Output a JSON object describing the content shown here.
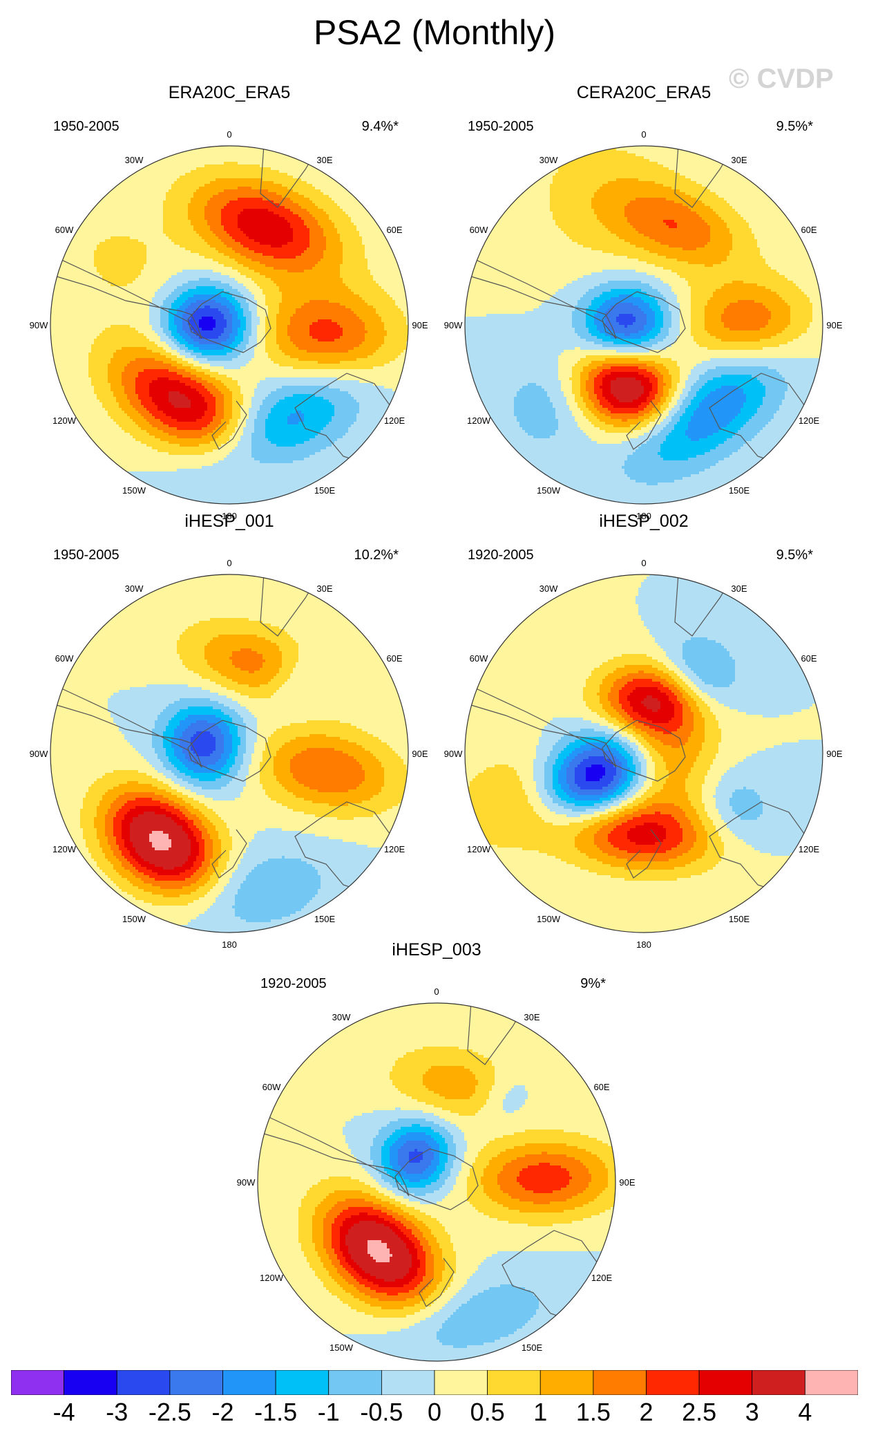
{
  "title": "PSA2 (Monthly)",
  "watermark": "© CVDP",
  "lon_labels": [
    "0",
    "30E",
    "60E",
    "90E",
    "120E",
    "150E",
    "180",
    "150W",
    "120W",
    "90W",
    "60W",
    "30W"
  ],
  "colors": [
    "#8f2ff0",
    "#1800f2",
    "#2a4af0",
    "#3a78ee",
    "#2196f8",
    "#00c0f8",
    "#72c8f2",
    "#b2dff3",
    "#fff59c",
    "#ffd930",
    "#ffae00",
    "#ff7c00",
    "#ff2800",
    "#e40000",
    "#cf1f1f",
    "#ffb4b4"
  ],
  "colorbar_labels": [
    "-4",
    "-3",
    "-2.5",
    "-2",
    "-1.5",
    "-1",
    "-0.5",
    "0",
    "0.5",
    "1",
    "1.5",
    "2",
    "2.5",
    "3",
    "4"
  ],
  "panels": [
    {
      "name": "ERA20C_ERA5",
      "period": "1950-2005",
      "pct": "9.4%*",
      "features": [
        {
          "type": "pos",
          "lon": 20,
          "r": 0.58,
          "amp": 2.9,
          "sx": 0.3,
          "sy": 0.17
        },
        {
          "type": "pos",
          "lon": 270,
          "r": 0.12,
          "amp": -3.4,
          "sx": 0.15,
          "sy": 0.17
        },
        {
          "type": "pos",
          "lon": 212,
          "r": 0.5,
          "amp": 3.2,
          "sx": 0.3,
          "sy": 0.17
        },
        {
          "type": "pos",
          "lon": 96,
          "r": 0.55,
          "amp": 2.2,
          "sx": 0.18,
          "sy": 0.28
        },
        {
          "type": "pos",
          "lon": 152,
          "r": 0.62,
          "amp": -1.8,
          "sx": 0.36,
          "sy": 0.16
        },
        {
          "type": "pos",
          "lon": 300,
          "r": 0.7,
          "amp": 0.6,
          "sx": 0.2,
          "sy": 0.25
        }
      ]
    },
    {
      "name": "CERA20C_ERA5",
      "period": "1950-2005",
      "pct": "9.5%*",
      "features": [
        {
          "type": "pos",
          "lon": 20,
          "r": 0.58,
          "amp": 1.8,
          "sx": 0.27,
          "sy": 0.15
        },
        {
          "type": "pos",
          "lon": 272,
          "r": 0.1,
          "amp": -3.0,
          "sx": 0.15,
          "sy": 0.17
        },
        {
          "type": "pos",
          "lon": 195,
          "r": 0.36,
          "amp": 3.8,
          "sx": 0.2,
          "sy": 0.16
        },
        {
          "type": "pos",
          "lon": 88,
          "r": 0.58,
          "amp": 1.9,
          "sx": 0.16,
          "sy": 0.24
        },
        {
          "type": "pos",
          "lon": 145,
          "r": 0.6,
          "amp": -2.1,
          "sx": 0.34,
          "sy": 0.16
        },
        {
          "type": "pos",
          "lon": 340,
          "r": 0.75,
          "amp": 0.7,
          "sx": 0.3,
          "sy": 0.3
        },
        {
          "type": "pos",
          "lon": 230,
          "r": 0.7,
          "amp": -0.8,
          "sx": 0.2,
          "sy": 0.2
        }
      ]
    },
    {
      "name": "iHESP_001",
      "period": "1950-2005",
      "pct": "10.2%*",
      "features": [
        {
          "type": "pos",
          "lon": 15,
          "r": 0.52,
          "amp": 1.7,
          "sx": 0.28,
          "sy": 0.15
        },
        {
          "type": "pos",
          "lon": 290,
          "r": 0.15,
          "amp": -2.9,
          "sx": 0.16,
          "sy": 0.16
        },
        {
          "type": "pos",
          "lon": 218,
          "r": 0.62,
          "amp": 4.2,
          "sx": 0.24,
          "sy": 0.17
        },
        {
          "type": "pos",
          "lon": 100,
          "r": 0.55,
          "amp": 2.0,
          "sx": 0.16,
          "sy": 0.28
        },
        {
          "type": "pos",
          "lon": 168,
          "r": 0.78,
          "amp": -1.0,
          "sx": 0.3,
          "sy": 0.16
        },
        {
          "type": "pos",
          "lon": 45,
          "r": 0.55,
          "amp": -0.9,
          "sx": 0.12,
          "sy": 0.14
        }
      ]
    },
    {
      "name": "iHESP_002",
      "period": "1920-2005",
      "pct": "9.5%*",
      "features": [
        {
          "type": "pos",
          "lon": 5,
          "r": 0.3,
          "amp": 2.6,
          "sx": 0.2,
          "sy": 0.14
        },
        {
          "type": "pos",
          "lon": 245,
          "r": 0.3,
          "amp": -4.0,
          "sx": 0.16,
          "sy": 0.22
        },
        {
          "type": "pos",
          "lon": 185,
          "r": 0.45,
          "amp": 2.6,
          "sx": 0.3,
          "sy": 0.14
        },
        {
          "type": "pos",
          "lon": 90,
          "r": 0.12,
          "amp": 1.6,
          "sx": 0.25,
          "sy": 0.2
        },
        {
          "type": "pos",
          "lon": 35,
          "r": 0.55,
          "amp": -1.4,
          "sx": 0.16,
          "sy": 0.14
        },
        {
          "type": "pos",
          "lon": 120,
          "r": 0.6,
          "amp": -0.9,
          "sx": 0.14,
          "sy": 0.16
        },
        {
          "type": "pos",
          "lon": 250,
          "r": 0.7,
          "amp": 1.1,
          "sx": 0.2,
          "sy": 0.3
        }
      ]
    },
    {
      "name": "iHESP_003",
      "period": "1920-2005",
      "pct": "9%*",
      "features": [
        {
          "type": "pos",
          "lon": 10,
          "r": 0.55,
          "amp": 1.3,
          "sx": 0.26,
          "sy": 0.15
        },
        {
          "type": "pos",
          "lon": 320,
          "r": 0.18,
          "amp": -2.7,
          "sx": 0.15,
          "sy": 0.14
        },
        {
          "type": "pos",
          "lon": 220,
          "r": 0.5,
          "amp": 4.2,
          "sx": 0.25,
          "sy": 0.17
        },
        {
          "type": "pos",
          "lon": 88,
          "r": 0.6,
          "amp": 2.3,
          "sx": 0.15,
          "sy": 0.28
        },
        {
          "type": "pos",
          "lon": 165,
          "r": 0.78,
          "amp": -1.0,
          "sx": 0.32,
          "sy": 0.14
        },
        {
          "type": "pos",
          "lon": 40,
          "r": 0.6,
          "amp": -0.7,
          "sx": 0.1,
          "sy": 0.12
        }
      ]
    }
  ]
}
